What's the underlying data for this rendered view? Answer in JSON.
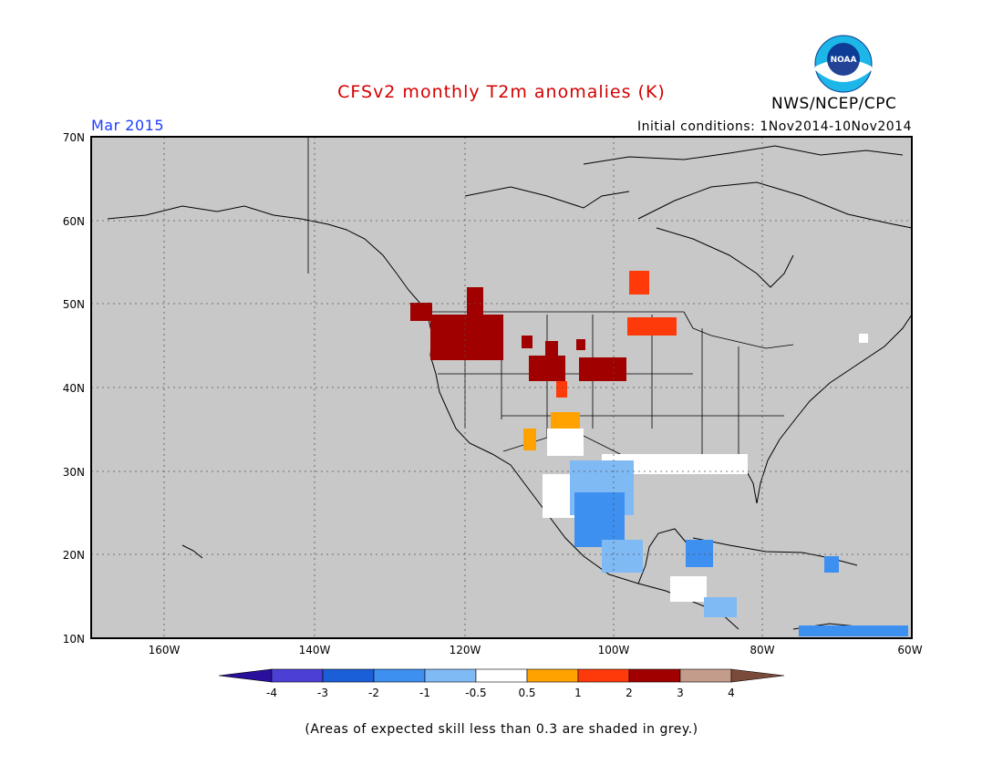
{
  "header": {
    "title": "CFSv2 monthly T2m anomalies (K)",
    "agency": "NWS/NCEP/CPC",
    "valid_month": "Mar 2015",
    "initial_conditions": "Initial conditions: 1Nov2014-10Nov2014"
  },
  "logo": {
    "text": "NOAA"
  },
  "map": {
    "lat_labels": [
      "70N",
      "60N",
      "50N",
      "40N",
      "30N",
      "20N",
      "10N"
    ],
    "lon_labels": [
      "160W",
      "140W",
      "120W",
      "100W",
      "80W",
      "60W"
    ],
    "background_color": "#c8c8c8"
  },
  "colorbar": {
    "labels": [
      "-4",
      "-3",
      "-2",
      "-1",
      "-0.5",
      "0.5",
      "1",
      "2",
      "3",
      "4"
    ],
    "colors": [
      "#2a0f9c",
      "#4b3fd6",
      "#1a5fd8",
      "#3d8ff0",
      "#7fbaf5",
      "#ffffff",
      "#ffa200",
      "#ff3a0a",
      "#a00000",
      "#c49c8c",
      "#7a4a3a"
    ]
  },
  "footnote": "(Areas of expected skill less than 0.3 are shaded in grey.)"
}
